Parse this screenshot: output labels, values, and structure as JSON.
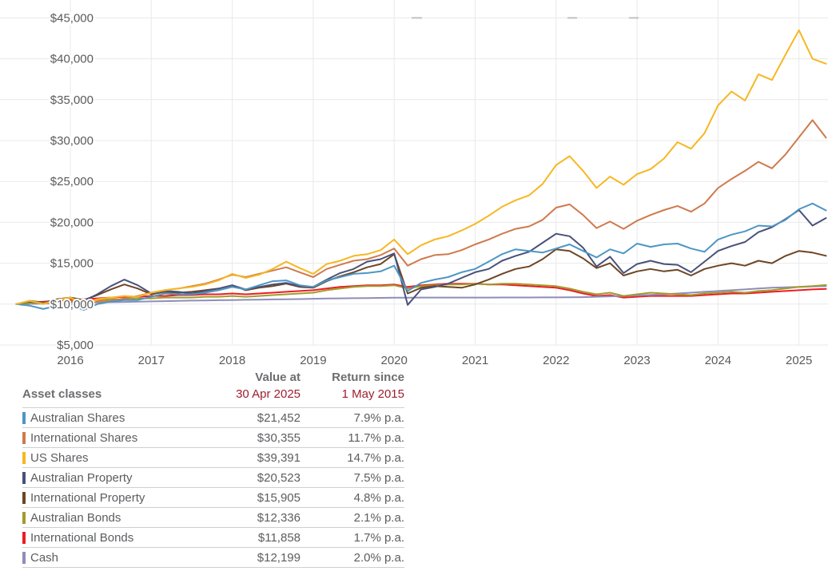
{
  "colors": {
    "grid": "#e9e9e9",
    "axis_text": "#595a5c",
    "table_text": "#5b5d60",
    "table_header_gray": "#6d6e71",
    "table_header_red": "#9d1e2e",
    "row_border": "#cfcfcf",
    "label_halo": "#ffffff"
  },
  "chart_data": {
    "type": "line",
    "title": "",
    "xlabel": "",
    "ylabel": "",
    "x_axis": {
      "start_year_fraction": 2015.333,
      "step_years": 0.16667,
      "tick_labels": [
        "2016",
        "2017",
        "2018",
        "2019",
        "2020",
        "2021",
        "2022",
        "2023",
        "2024",
        "2025"
      ],
      "tick_values": [
        2016,
        2017,
        2018,
        2019,
        2020,
        2021,
        2022,
        2023,
        2024,
        2025
      ]
    },
    "y_axis": {
      "tick_values": [
        5000,
        10000,
        15000,
        20000,
        25000,
        30000,
        35000,
        40000,
        45000
      ],
      "tick_labels": [
        "$5,000",
        "$10,000",
        "$15,000",
        "$20,000",
        "$25,000",
        "$30,000",
        "$35,000",
        "$40,000",
        "$45,000"
      ],
      "ylim": [
        5000,
        45000
      ]
    },
    "grid": true,
    "legend_position": "table-below",
    "values_unit": "AUD thousands (growth of $10,000 invested 1 May 2015)",
    "draw_order": [
      "international-bonds",
      "cash",
      "australian-bonds",
      "international-property",
      "australian-property",
      "international-shares",
      "australian-shares",
      "us-shares"
    ],
    "series": [
      {
        "slug": "australian-shares",
        "name": "Australian Shares",
        "color": "#4d96c4",
        "values": [
          10.0,
          9.8,
          9.4,
          9.8,
          9.9,
          9.3,
          10.0,
          10.3,
          10.5,
          10.5,
          10.9,
          11.3,
          11.2,
          11.2,
          11.4,
          11.7,
          12.1,
          11.8,
          12.3,
          12.8,
          12.9,
          12.3,
          12.1,
          12.9,
          13.3,
          13.7,
          13.8,
          14.0,
          14.7,
          11.6,
          12.6,
          13.0,
          13.3,
          13.9,
          14.3,
          15.2,
          16.1,
          16.7,
          16.5,
          16.3,
          16.8,
          17.3,
          16.5,
          15.7,
          16.7,
          16.2,
          17.4,
          17.0,
          17.3,
          17.4,
          16.8,
          16.4,
          17.9,
          18.5,
          18.9,
          19.6,
          19.5,
          20.3,
          21.6,
          22.3,
          21.452
        ]
      },
      {
        "slug": "international-shares",
        "name": "International Shares",
        "color": "#cf7a4d",
        "values": [
          10.0,
          10.4,
          10.1,
          10.5,
          10.7,
          9.9,
          10.3,
          10.4,
          10.7,
          11.0,
          11.4,
          11.7,
          11.9,
          12.2,
          12.5,
          13.0,
          13.6,
          13.3,
          13.7,
          14.1,
          14.5,
          13.9,
          13.3,
          14.3,
          14.8,
          15.3,
          15.5,
          16.0,
          16.8,
          14.7,
          15.5,
          16.0,
          16.1,
          16.6,
          17.3,
          17.9,
          18.6,
          19.2,
          19.5,
          20.3,
          21.8,
          22.2,
          20.9,
          19.3,
          20.1,
          19.2,
          20.2,
          20.9,
          21.5,
          22.0,
          21.3,
          22.3,
          24.2,
          25.3,
          26.3,
          27.4,
          26.6,
          28.3,
          30.4,
          32.5,
          30.355
        ]
      },
      {
        "slug": "us-shares",
        "name": "US Shares",
        "color": "#f7b722",
        "values": [
          10.0,
          10.4,
          10.0,
          10.5,
          10.8,
          10.0,
          10.6,
          10.8,
          11.0,
          10.9,
          11.4,
          11.7,
          11.9,
          12.1,
          12.4,
          12.9,
          13.7,
          13.2,
          13.6,
          14.3,
          15.2,
          14.4,
          13.7,
          14.9,
          15.3,
          15.9,
          16.1,
          16.6,
          17.9,
          16.1,
          17.2,
          17.9,
          18.3,
          19.0,
          19.8,
          20.8,
          21.9,
          22.7,
          23.3,
          24.7,
          27.0,
          28.1,
          26.3,
          24.2,
          25.6,
          24.6,
          25.9,
          26.5,
          27.8,
          29.8,
          29.0,
          30.9,
          34.3,
          36.0,
          34.9,
          38.1,
          37.4,
          40.5,
          43.5,
          40.0,
          39.391
        ]
      },
      {
        "slug": "australian-property",
        "name": "Australian Property",
        "color": "#485179",
        "values": [
          10.0,
          10.3,
          10.1,
          10.5,
          10.7,
          10.4,
          11.2,
          12.2,
          13.0,
          12.3,
          11.3,
          11.6,
          11.5,
          11.3,
          11.6,
          11.9,
          12.3,
          11.8,
          12.1,
          12.4,
          12.6,
          12.2,
          12.1,
          13.0,
          13.8,
          14.3,
          15.2,
          15.5,
          16.2,
          9.9,
          11.8,
          12.1,
          12.5,
          13.2,
          13.9,
          14.3,
          15.3,
          15.9,
          16.4,
          17.5,
          18.6,
          18.3,
          16.9,
          14.6,
          15.8,
          13.8,
          14.9,
          15.3,
          14.9,
          14.8,
          13.9,
          15.2,
          16.5,
          17.1,
          17.6,
          18.8,
          19.4,
          20.4,
          21.5,
          19.6,
          20.523
        ]
      },
      {
        "slug": "international-property",
        "name": "International Property",
        "color": "#6e4524",
        "values": [
          10.0,
          10.4,
          10.2,
          10.6,
          10.8,
          10.5,
          11.1,
          11.8,
          12.4,
          11.9,
          11.2,
          11.5,
          11.4,
          11.5,
          11.7,
          11.9,
          12.3,
          11.7,
          12.0,
          12.2,
          12.5,
          12.1,
          12.0,
          12.8,
          13.4,
          13.9,
          14.5,
          14.9,
          16.1,
          11.3,
          12.0,
          12.2,
          12.1,
          12.0,
          12.4,
          13.0,
          13.7,
          14.3,
          14.6,
          15.5,
          16.7,
          16.5,
          15.6,
          14.4,
          15.0,
          13.5,
          14.0,
          14.3,
          14.0,
          14.2,
          13.5,
          14.3,
          14.7,
          15.0,
          14.7,
          15.3,
          15.0,
          15.9,
          16.5,
          16.3,
          15.905
        ]
      },
      {
        "slug": "australian-bonds",
        "name": "Australian Bonds",
        "color": "#a39b2e",
        "values": [
          10.0,
          10.1,
          10.2,
          10.2,
          10.3,
          10.4,
          10.5,
          10.6,
          10.6,
          10.7,
          10.7,
          10.8,
          10.8,
          10.8,
          10.9,
          10.9,
          11.0,
          10.9,
          11.0,
          11.1,
          11.2,
          11.3,
          11.4,
          11.7,
          11.9,
          12.1,
          12.2,
          12.2,
          12.3,
          11.9,
          12.2,
          12.3,
          12.4,
          12.4,
          12.5,
          12.4,
          12.5,
          12.5,
          12.4,
          12.3,
          12.2,
          11.9,
          11.5,
          11.2,
          11.4,
          11.0,
          11.2,
          11.4,
          11.3,
          11.2,
          11.1,
          11.3,
          11.4,
          11.5,
          11.4,
          11.6,
          11.7,
          11.9,
          12.1,
          12.2,
          12.336
        ]
      },
      {
        "slug": "international-bonds",
        "name": "International Bonds",
        "color": "#ec1c24",
        "values": [
          10.0,
          10.2,
          10.3,
          10.4,
          10.5,
          10.6,
          10.7,
          10.8,
          10.9,
          10.9,
          11.0,
          11.0,
          11.1,
          11.1,
          11.2,
          11.2,
          11.3,
          11.2,
          11.3,
          11.4,
          11.5,
          11.6,
          11.7,
          11.9,
          12.1,
          12.2,
          12.3,
          12.3,
          12.4,
          12.1,
          12.3,
          12.4,
          12.5,
          12.5,
          12.5,
          12.4,
          12.4,
          12.3,
          12.2,
          12.1,
          12.0,
          11.7,
          11.3,
          11.0,
          11.1,
          10.8,
          10.9,
          11.0,
          11.0,
          11.0,
          11.0,
          11.1,
          11.2,
          11.3,
          11.3,
          11.4,
          11.5,
          11.6,
          11.7,
          11.8,
          11.858
        ]
      },
      {
        "slug": "cash",
        "name": "Cash",
        "color": "#8e8db9",
        "values": [
          10.0,
          10.03,
          10.06,
          10.1,
          10.13,
          10.16,
          10.2,
          10.23,
          10.26,
          10.3,
          10.33,
          10.36,
          10.4,
          10.43,
          10.45,
          10.48,
          10.5,
          10.53,
          10.55,
          10.58,
          10.6,
          10.62,
          10.65,
          10.68,
          10.7,
          10.72,
          10.74,
          10.76,
          10.78,
          10.79,
          10.8,
          10.8,
          10.8,
          10.8,
          10.8,
          10.8,
          10.81,
          10.81,
          10.81,
          10.82,
          10.82,
          10.83,
          10.85,
          10.9,
          10.95,
          11.0,
          11.05,
          11.12,
          11.2,
          11.3,
          11.4,
          11.5,
          11.6,
          11.7,
          11.8,
          11.9,
          12.0,
          12.05,
          12.1,
          12.15,
          12.199
        ]
      }
    ]
  },
  "table": {
    "header": {
      "assets": "Asset classes",
      "value_line1": "Value at",
      "value_line2": "30 Apr 2025",
      "return_line1": "Return since",
      "return_line2": "1 May 2015"
    },
    "rows": [
      {
        "label": "Australian Shares",
        "value": "$21,452",
        "return": "7.9% p.a.",
        "color": "#4d96c4"
      },
      {
        "label": "International Shares",
        "value": "$30,355",
        "return": "11.7% p.a.",
        "color": "#cf7a4d"
      },
      {
        "label": "US Shares",
        "value": "$39,391",
        "return": "14.7% p.a.",
        "color": "#f7b722"
      },
      {
        "label": "Australian Property",
        "value": "$20,523",
        "return": "7.5% p.a.",
        "color": "#485179"
      },
      {
        "label": "International Property",
        "value": "$15,905",
        "return": "4.8% p.a.",
        "color": "#6e4524"
      },
      {
        "label": "Australian Bonds",
        "value": "$12,336",
        "return": "2.1% p.a.",
        "color": "#a39b2e"
      },
      {
        "label": "International Bonds",
        "value": "$11,858",
        "return": "1.7% p.a.",
        "color": "#ec1c24"
      },
      {
        "label": "Cash",
        "value": "$12,199",
        "return": "2.0% p.a.",
        "color": "#8e8db9"
      }
    ]
  }
}
